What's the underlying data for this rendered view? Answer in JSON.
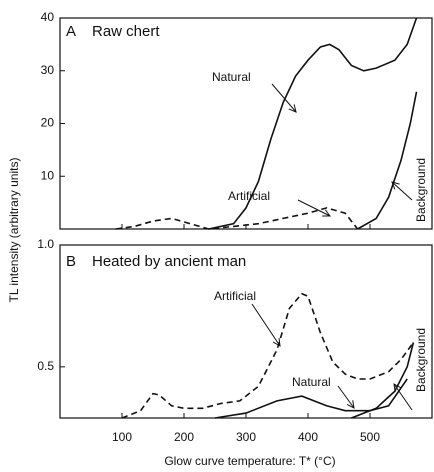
{
  "ylabel": "TL intensity (arbitrary units)",
  "xlabel": "Glow curve temperature: T* (°C)",
  "chart_data": [
    {
      "type": "line",
      "annotations": [
        "A",
        "Raw chert",
        "Natural",
        "Artificial",
        "Background"
      ],
      "xlim": [
        0,
        600
      ],
      "xticks": [
        100,
        200,
        300,
        400,
        500
      ],
      "ylim": [
        0,
        40
      ],
      "yticks": [
        10,
        20,
        30,
        40
      ],
      "series": [
        {
          "name": "Natural",
          "color": "#111111",
          "dash": false,
          "x": [
            240,
            280,
            300,
            320,
            340,
            360,
            380,
            400,
            420,
            435,
            450,
            470,
            490,
            510,
            540,
            560,
            575
          ],
          "values": [
            0,
            1,
            4,
            9,
            17,
            24,
            29,
            32,
            34.5,
            35,
            34,
            31,
            30,
            30.5,
            32,
            35,
            40
          ]
        },
        {
          "name": "Artificial",
          "color": "#111111",
          "dash": true,
          "x": [
            90,
            120,
            150,
            180,
            210,
            240,
            280,
            320,
            360,
            400,
            430,
            460,
            480
          ],
          "values": [
            0,
            0.5,
            1.5,
            2,
            1,
            0,
            0.5,
            1,
            2,
            3,
            4,
            3,
            0
          ]
        },
        {
          "name": "Background",
          "color": "#111111",
          "dash": false,
          "x": [
            480,
            510,
            530,
            550,
            565,
            575
          ],
          "values": [
            0,
            2,
            6,
            13,
            20,
            26
          ]
        }
      ]
    },
    {
      "type": "line",
      "annotations": [
        "B",
        "Heated by ancient man",
        "Artificial",
        "Natural",
        "Background"
      ],
      "xlim": [
        0,
        600
      ],
      "xticks": [
        100,
        200,
        300,
        400,
        500
      ],
      "ylim": [
        0.29,
        1.0
      ],
      "yticks": [
        0.5,
        {
          "value": 1.0,
          "label": "1.0"
        }
      ],
      "series": [
        {
          "name": "Artificial",
          "color": "#111111",
          "dash": true,
          "x": [
            100,
            130,
            150,
            160,
            180,
            200,
            230,
            260,
            290,
            320,
            350,
            370,
            390,
            400,
            420,
            440,
            460,
            480,
            500,
            530,
            550,
            570
          ],
          "values": [
            0.29,
            0.32,
            0.39,
            0.385,
            0.34,
            0.33,
            0.33,
            0.35,
            0.36,
            0.42,
            0.57,
            0.74,
            0.8,
            0.79,
            0.64,
            0.52,
            0.47,
            0.45,
            0.45,
            0.48,
            0.53,
            0.6
          ]
        },
        {
          "name": "Natural",
          "color": "#111111",
          "dash": false,
          "x": [
            250,
            300,
            350,
            390,
            430,
            460,
            500,
            530,
            560
          ],
          "values": [
            0.29,
            0.31,
            0.36,
            0.38,
            0.34,
            0.32,
            0.32,
            0.34,
            0.45
          ]
        },
        {
          "name": "Background",
          "color": "#111111",
          "dash": false,
          "x": [
            470,
            510,
            540,
            560,
            570
          ],
          "values": [
            0.29,
            0.33,
            0.4,
            0.5,
            0.6
          ]
        }
      ]
    }
  ]
}
